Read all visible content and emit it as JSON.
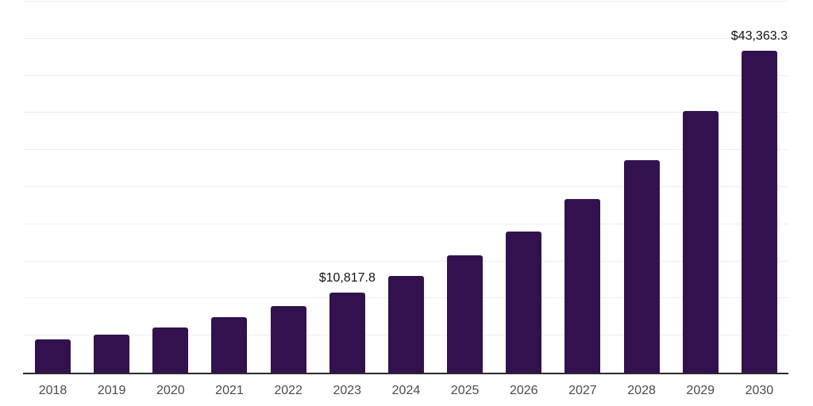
{
  "page": {
    "background": "#ffffff"
  },
  "chart_data": {
    "type": "bar",
    "title": "",
    "xlabel": "",
    "ylabel": "",
    "categories": [
      "2018",
      "2019",
      "2020",
      "2021",
      "2022",
      "2023",
      "2024",
      "2025",
      "2026",
      "2027",
      "2028",
      "2029",
      "2030"
    ],
    "values": [
      4500,
      5100,
      6100,
      7450,
      9000,
      10817.8,
      13000,
      15800,
      19000,
      23400,
      28600,
      35250,
      43363.3
    ],
    "data_labels": [
      null,
      null,
      null,
      null,
      null,
      "$10,817.8",
      null,
      null,
      null,
      null,
      null,
      null,
      "$43,363.3"
    ],
    "ylim": [
      0,
      50000
    ],
    "gridline_interval": 5000,
    "grid": true,
    "legend_position": "none",
    "bar_color": "#32114E",
    "axis_color": "#2b2b2b",
    "gridline_color": "#ededed",
    "tick_label_color": "#4a4a4a",
    "data_label_color": "#111111"
  }
}
